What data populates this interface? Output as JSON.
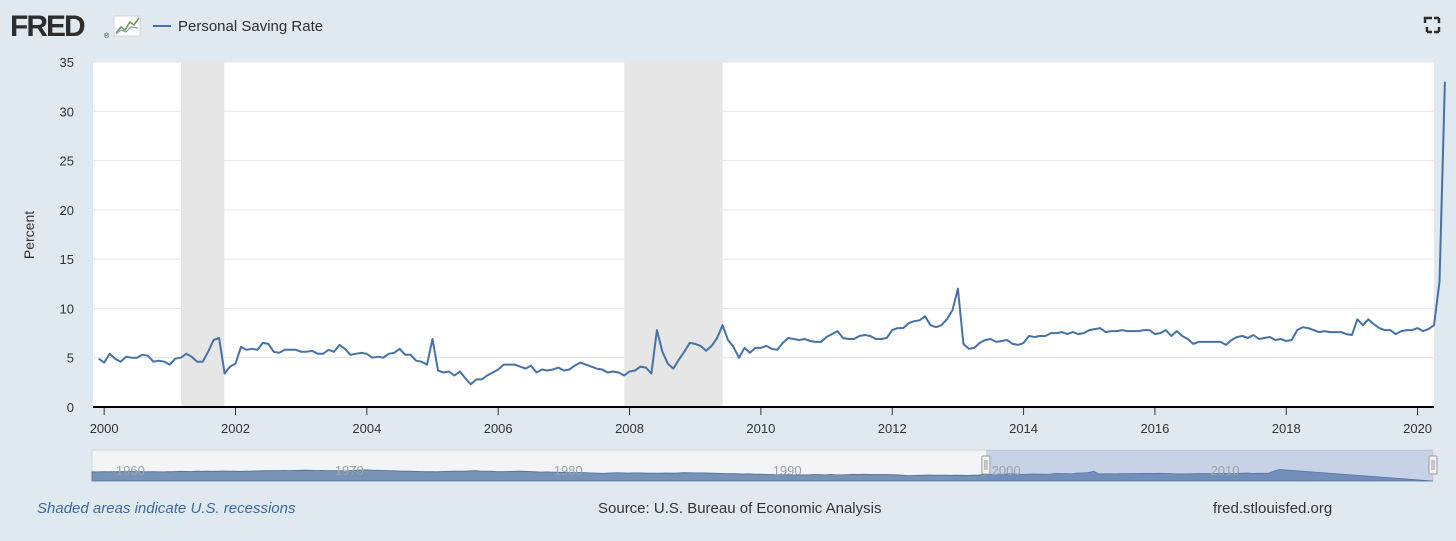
{
  "brand": {
    "logo_text": "FRED",
    "logo_mark": "chart-line-icon"
  },
  "legend": {
    "series_label": "Personal Saving Rate",
    "series_color": "#4572a7"
  },
  "toolbar": {
    "fullscreen_icon": "fullscreen-icon"
  },
  "footer": {
    "recession_note": "Shaded areas indicate U.S. recessions",
    "source": "Source: U.S. Bureau of Economic Analysis",
    "site": "fred.stlouisfed.org"
  },
  "navigator": {
    "labels": [
      "1960",
      "1970",
      "1980",
      "1990",
      "2000",
      "2010"
    ]
  },
  "colors": {
    "background": "#e1e9f0",
    "plot": "#ffffff",
    "line": "#4572a7",
    "recession": "#e6e6e6",
    "grid": "#e6e6e6"
  },
  "chart_data": {
    "type": "line",
    "title": "",
    "xlabel": "",
    "ylabel": "Percent",
    "ylim": [
      0,
      35
    ],
    "yticks": [
      0,
      5,
      10,
      15,
      20,
      25,
      30,
      35
    ],
    "xlim": [
      1999.83,
      2020.25
    ],
    "xticks": [
      2000,
      2002,
      2004,
      2006,
      2008,
      2010,
      2012,
      2014,
      2016,
      2018,
      2020
    ],
    "grid": true,
    "legend_position": "top-left",
    "recessions": [
      {
        "start": 2001.17,
        "end": 2001.83
      },
      {
        "start": 2007.92,
        "end": 2009.42
      }
    ],
    "series": [
      {
        "name": "Personal Saving Rate",
        "frequency": "monthly",
        "start": "1999-12",
        "values": [
          4.9,
          4.5,
          5.4,
          4.9,
          4.6,
          5.1,
          5.0,
          5.0,
          5.3,
          5.2,
          4.6,
          4.7,
          4.6,
          4.3,
          4.9,
          5.0,
          5.4,
          5.1,
          4.6,
          4.6,
          5.6,
          6.8,
          7.0,
          3.4,
          4.1,
          4.4,
          6.1,
          5.8,
          5.9,
          5.8,
          6.5,
          6.4,
          5.6,
          5.5,
          5.8,
          5.8,
          5.8,
          5.6,
          5.6,
          5.7,
          5.4,
          5.4,
          5.8,
          5.6,
          6.3,
          5.9,
          5.3,
          5.4,
          5.5,
          5.4,
          5.0,
          5.1,
          5.0,
          5.4,
          5.5,
          5.9,
          5.3,
          5.3,
          4.7,
          4.6,
          4.3,
          6.9,
          3.7,
          3.5,
          3.6,
          3.2,
          3.6,
          2.9,
          2.3,
          2.8,
          2.8,
          3.2,
          3.5,
          3.8,
          4.3,
          4.3,
          4.3,
          4.1,
          3.9,
          4.2,
          3.5,
          3.8,
          3.7,
          3.8,
          4.0,
          3.7,
          3.8,
          4.2,
          4.5,
          4.3,
          4.1,
          3.9,
          3.8,
          3.5,
          3.6,
          3.5,
          3.2,
          3.6,
          3.7,
          4.1,
          4.0,
          3.4,
          7.8,
          5.6,
          4.4,
          3.9,
          4.8,
          5.6,
          6.5,
          6.4,
          6.2,
          5.7,
          6.2,
          7.0,
          8.3,
          6.8,
          6.1,
          5.0,
          6.0,
          5.5,
          6.0,
          6.0,
          6.2,
          5.9,
          5.8,
          6.5,
          7.0,
          6.9,
          6.8,
          6.9,
          6.7,
          6.6,
          6.6,
          7.1,
          7.4,
          7.7,
          7.0,
          6.9,
          6.9,
          7.2,
          7.3,
          7.2,
          6.9,
          6.9,
          7.0,
          7.8,
          8.0,
          8.0,
          8.5,
          8.7,
          8.8,
          9.2,
          8.3,
          8.1,
          8.3,
          8.9,
          9.8,
          12.0,
          6.4,
          5.9,
          6.0,
          6.5,
          6.8,
          6.9,
          6.6,
          6.7,
          6.8,
          6.4,
          6.3,
          6.5,
          7.2,
          7.1,
          7.2,
          7.2,
          7.5,
          7.5,
          7.6,
          7.4,
          7.6,
          7.4,
          7.5,
          7.8,
          7.9,
          8.0,
          7.6,
          7.7,
          7.7,
          7.8,
          7.7,
          7.7,
          7.7,
          7.8,
          7.8,
          7.4,
          7.5,
          7.8,
          7.2,
          7.7,
          7.2,
          6.9,
          6.4,
          6.6,
          6.6,
          6.6,
          6.6,
          6.6,
          6.3,
          6.8,
          7.1,
          7.2,
          7.0,
          7.3,
          6.9,
          7.0,
          7.1,
          6.8,
          6.9,
          6.7,
          6.8,
          7.8,
          8.1,
          8.0,
          7.8,
          7.6,
          7.7,
          7.6,
          7.6,
          7.6,
          7.4,
          7.3,
          8.9,
          8.3,
          8.9,
          8.4,
          8.0,
          7.8,
          7.8,
          7.4,
          7.7,
          7.8,
          7.8,
          8.0,
          7.7,
          7.9,
          8.3,
          12.7,
          33.0
        ]
      }
    ],
    "navigator_series": {
      "start": 1959,
      "step": 0.25,
      "values": [
        11.0,
        10.8,
        11.2,
        11.0,
        11.4,
        11.2,
        11.6,
        11.8,
        11.5,
        11.3,
        11.0,
        11.2,
        11.1,
        10.9,
        11.3,
        11.5,
        12.0,
        11.8,
        11.6,
        12.2,
        12.0,
        12.3,
        12.1,
        12.4,
        12.8,
        12.5,
        12.2,
        12.0,
        12.4,
        12.6,
        12.9,
        13.1,
        13.3,
        13.6,
        13.4,
        13.8,
        13.5,
        13.9,
        14.2,
        14.5,
        14.2,
        13.8,
        14.0,
        13.5,
        13.6,
        13.2,
        12.9,
        13.5,
        14.0,
        14.8,
        15.0,
        14.6,
        14.3,
        13.9,
        13.6,
        13.2,
        12.8,
        12.2,
        12.5,
        12.0,
        11.6,
        11.2,
        11.5,
        11.1,
        11.6,
        12.0,
        12.3,
        12.4,
        12.6,
        12.9,
        13.3,
        12.8,
        12.5,
        12.0,
        11.5,
        11.3,
        11.6,
        12.1,
        12.4,
        12.0,
        11.6,
        11.0,
        10.4,
        10.8,
        10.5,
        10.2,
        9.8,
        9.6,
        9.4,
        9.6,
        9.3,
        8.8,
        8.4,
        7.8,
        8.0,
        8.6,
        8.9,
        8.8,
        8.5,
        8.7,
        8.6,
        8.4,
        8.3,
        8.2,
        8.0,
        8.4,
        8.1,
        8.4,
        9.2,
        9.0,
        8.6,
        8.7,
        8.8,
        8.3,
        7.8,
        7.6,
        7.3,
        7.0,
        6.8,
        6.4,
        6.7,
        6.2,
        6.0,
        5.8,
        5.4,
        5.2,
        5.0,
        4.6,
        4.2,
        4.5,
        4.4,
        4.6,
        5.4,
        4.8,
        4.5,
        5.6,
        4.4,
        4.5,
        4.9,
        5.8,
        5.6,
        5.7,
        5.6,
        5.4,
        5.2,
        5.4,
        4.8,
        4.6,
        3.8,
        3.0,
        3.2,
        3.6,
        3.9,
        4.2,
        3.8,
        3.8,
        4.1,
        3.7,
        3.9,
        3.6,
        3.5,
        4.0,
        3.9,
        6.2,
        5.2,
        6.0,
        6.1,
        6.4,
        7.0,
        6.0,
        5.5,
        6.2,
        6.4,
        6.2,
        5.7,
        6.1,
        7.5,
        7.2,
        6.9,
        6.6,
        8.5,
        8.8,
        9.4,
        12.0,
        6.3,
        6.8,
        6.7,
        6.5,
        6.9,
        7.3,
        7.4,
        7.4,
        7.6,
        7.6,
        7.7,
        7.8,
        7.5,
        7.2,
        6.5,
        6.6,
        6.5,
        6.8,
        7.1,
        7.0,
        6.9,
        6.9,
        7.7,
        7.6,
        7.4,
        7.4,
        8.3,
        8.4,
        7.7,
        7.8,
        7.9,
        8.2,
        12.7,
        33.0
      ]
    }
  }
}
